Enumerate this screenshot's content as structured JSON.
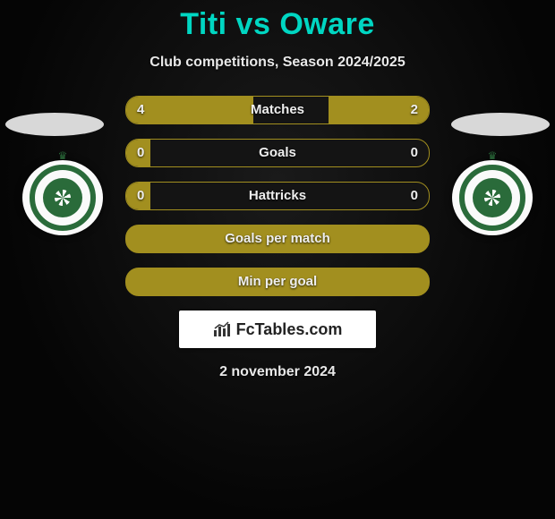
{
  "header": {
    "player1": "Titi",
    "vs": "vs",
    "player2": "Oware",
    "title_color": "#00d6c2"
  },
  "subtitle": "Club competitions, Season 2024/2025",
  "accent_color": "#a28f1f",
  "text_color": "#e8e8e8",
  "stats": [
    {
      "label": "Matches",
      "left_val": "4",
      "right_val": "2",
      "left_pct": 42,
      "right_pct": 33,
      "full": false
    },
    {
      "label": "Goals",
      "left_val": "0",
      "right_val": "0",
      "left_pct": 8,
      "right_pct": 0,
      "full": false
    },
    {
      "label": "Hattricks",
      "left_val": "0",
      "right_val": "0",
      "left_pct": 8,
      "right_pct": 0,
      "full": false
    },
    {
      "label": "Goals per match",
      "left_val": "",
      "right_val": "",
      "left_pct": 0,
      "right_pct": 0,
      "full": true
    },
    {
      "label": "Min per goal",
      "left_val": "",
      "right_val": "",
      "left_pct": 0,
      "right_pct": 0,
      "full": true
    }
  ],
  "club_badge": {
    "ring_color": "#2a6b3a",
    "bg_color": "#fafafa"
  },
  "branding": {
    "text": "FcTables.com",
    "icon": "chart-icon"
  },
  "date": "2 november 2024"
}
